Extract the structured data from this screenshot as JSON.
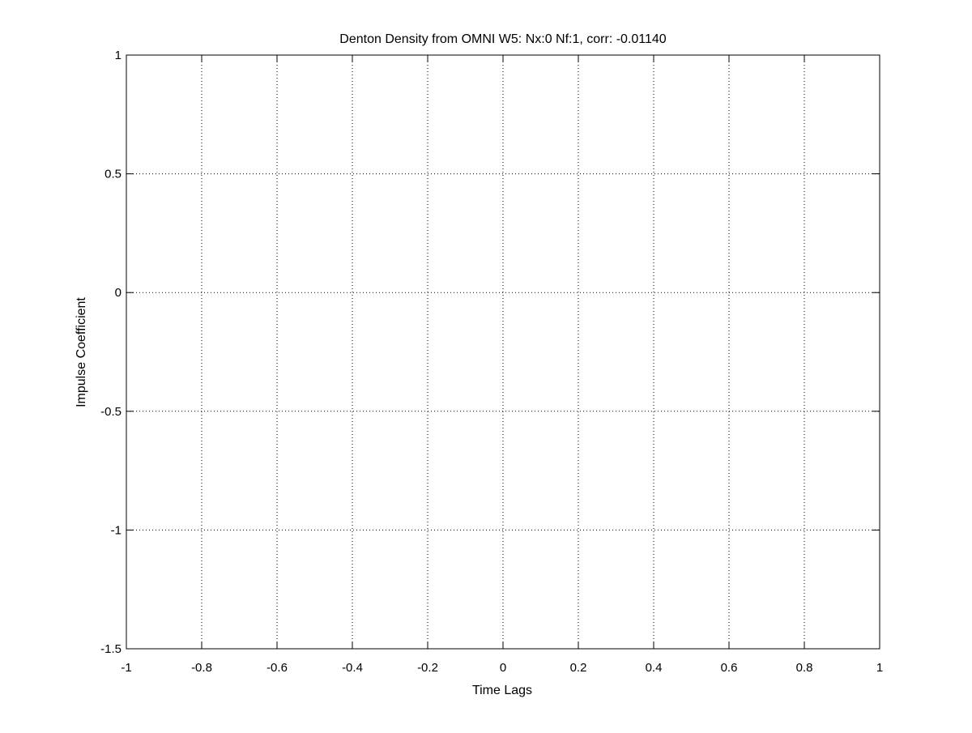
{
  "chart_data": {
    "type": "line",
    "title": "Denton Density from OMNI W5: Nx:0 Nf:1, corr: -0.01140",
    "xlabel": "Time Lags",
    "ylabel": "Impulse Coefficient",
    "xlim": [
      -1,
      1
    ],
    "ylim": [
      -1.5,
      1
    ],
    "xticks": [
      -1,
      -0.8,
      -0.6,
      -0.4,
      -0.2,
      0,
      0.2,
      0.4,
      0.6,
      0.8,
      1
    ],
    "xtick_labels": [
      "-1",
      "-0.8",
      "-0.6",
      "-0.4",
      "-0.2",
      "0",
      "0.2",
      "0.4",
      "0.6",
      "0.8",
      "1"
    ],
    "yticks": [
      -1.5,
      -1,
      -0.5,
      0,
      0.5,
      1
    ],
    "ytick_labels": [
      "-1.5",
      "-1",
      "-0.5",
      "0",
      "0.5",
      "1"
    ],
    "grid": true,
    "series": []
  }
}
